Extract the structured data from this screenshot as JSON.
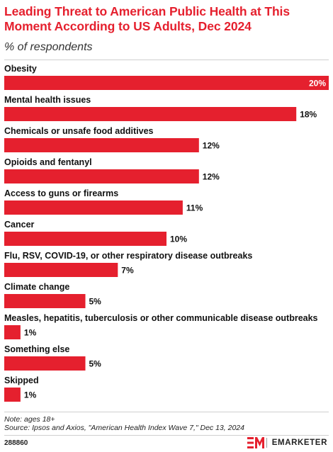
{
  "title": "Leading Threat to American Public Health at This Moment According to US Adults, Dec 2024",
  "subtitle": "% of respondents",
  "note": "Note: ages 18+",
  "source": "Source: Ipsos and Axios, \"American Health Index Wave 7,\" Dec 13, 2024",
  "chart_id": "288860",
  "logo_text": "EMARKETER",
  "colors": {
    "bar": "#e5202e",
    "title": "#e5202e",
    "label": "#111111"
  },
  "chart_data": {
    "type": "bar",
    "orientation": "horizontal",
    "categories": [
      "Obesity",
      "Mental health issues",
      "Chemicals or unsafe food additives",
      "Opioids and fentanyl",
      "Access to guns or firearms",
      "Cancer",
      "Flu, RSV, COVID-19, or other respiratory disease outbreaks",
      "Climate change",
      "Measles, hepatitis, tuberculosis or other communicable disease outbreaks",
      "Something else",
      "Skipped"
    ],
    "values": [
      20,
      18,
      12,
      12,
      11,
      10,
      7,
      5,
      1,
      5,
      1
    ],
    "value_labels": [
      "20%",
      "18%",
      "12%",
      "12%",
      "11%",
      "10%",
      "7%",
      "5%",
      "1%",
      "5%",
      "1%"
    ],
    "unit": "%",
    "xlim": [
      0,
      20
    ],
    "grid": false,
    "legend": "none"
  }
}
